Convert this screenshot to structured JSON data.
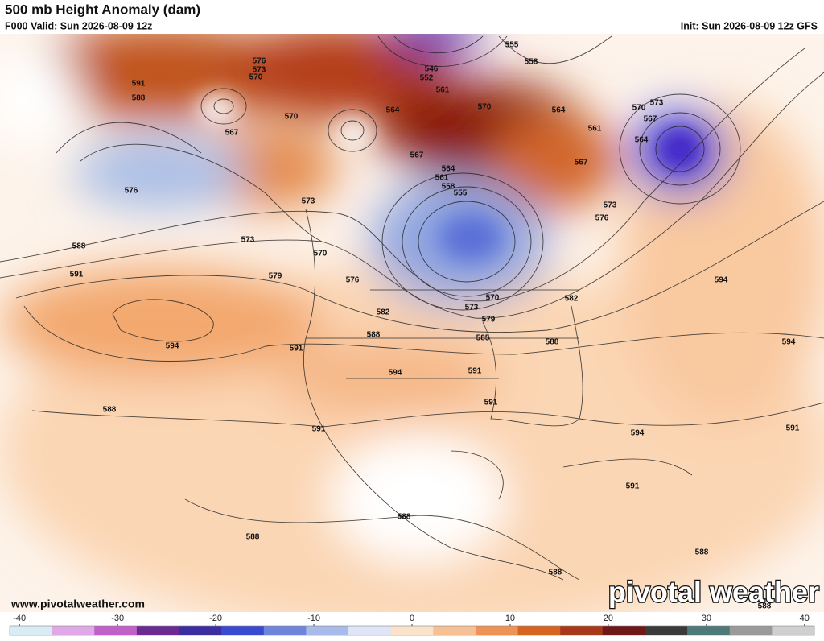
{
  "header": {
    "title": "500 mb Height Anomaly (dam)",
    "valid": "F000 Valid: Sun 2026-08-09 12z",
    "init": "Init: Sun 2026-08-09 12z GFS"
  },
  "footer": {
    "website": "www.pivotalweather.com",
    "logo": "pivotal weather"
  },
  "contour_labels": [
    591,
    588,
    576,
    573,
    570,
    567,
    570,
    576,
    573,
    573,
    570,
    579,
    576,
    588,
    591,
    594,
    588,
    591,
    588,
    582,
    594,
    591,
    591,
    585,
    579,
    573,
    570,
    582,
    588,
    594,
    594,
    591,
    594,
    591,
    591,
    588,
    588,
    588,
    588,
    588,
    555,
    558,
    546,
    552,
    561,
    564,
    570,
    564,
    561,
    567,
    570,
    573,
    567,
    564,
    567,
    564,
    561,
    558,
    555,
    573,
    576
  ],
  "colorbar": {
    "lim": [
      -41,
      41
    ],
    "ticks": [
      -40,
      -30,
      -20,
      -10,
      0,
      10,
      20,
      30,
      40
    ],
    "colors": [
      "#d8ecf4",
      "#e0a8e6",
      "#c060c8",
      "#6a2a92",
      "#3c2ea0",
      "#3a4ad0",
      "#6f85dc",
      "#a8bbea",
      "#dde5f6",
      "#fbe2cb",
      "#f7bf94",
      "#ee9356",
      "#d4641e",
      "#a8381a",
      "#6e1818",
      "#3a3a3a",
      "#4d7a78",
      "#9a9a9a",
      "#cfcfcf"
    ]
  }
}
